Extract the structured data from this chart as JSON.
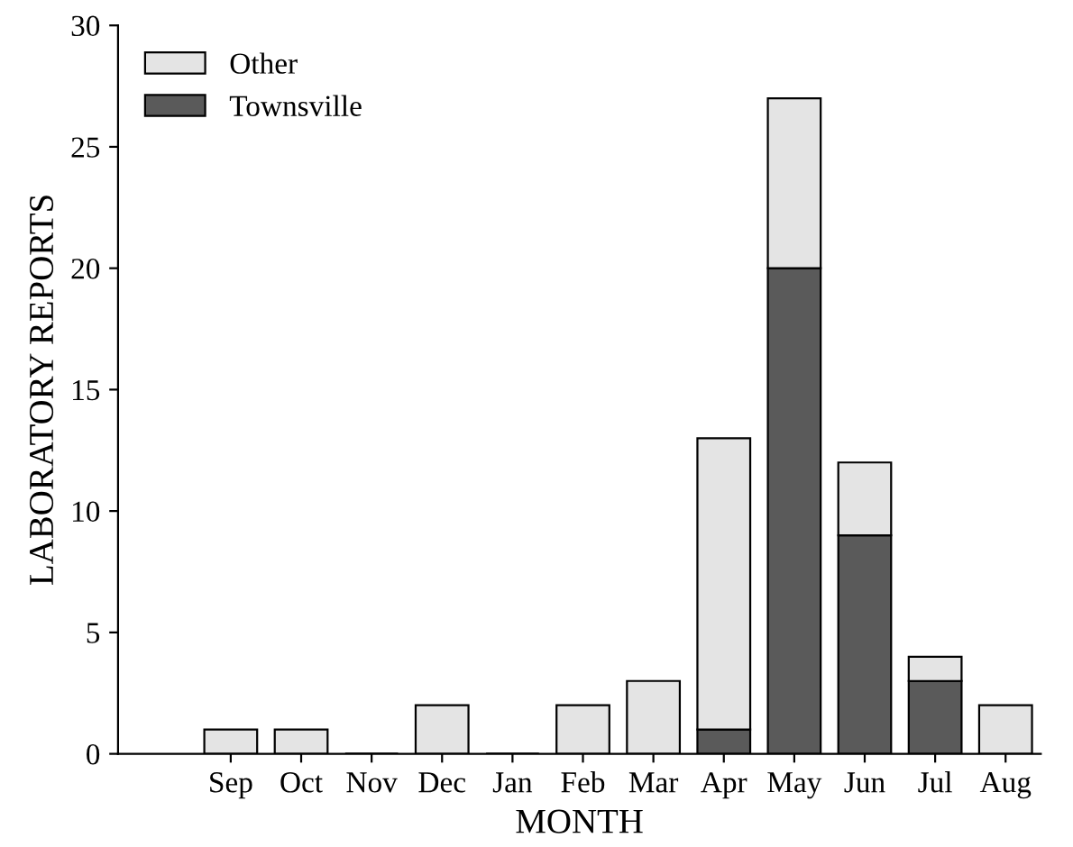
{
  "chart_data": {
    "type": "bar",
    "stacked": true,
    "xlabel": "MONTH",
    "ylabel": "LABORATORY REPORTS",
    "categories": [
      "Sep",
      "Oct",
      "Nov",
      "Dec",
      "Jan",
      "Feb",
      "Mar",
      "Apr",
      "May",
      "Jun",
      "Jul",
      "Aug"
    ],
    "series": [
      {
        "name": "Townsville",
        "color": "#5a5a5a",
        "values": [
          0,
          0,
          0,
          0,
          0,
          0,
          0,
          1,
          20,
          9,
          3,
          0
        ]
      },
      {
        "name": "Other",
        "color": "#e4e4e4",
        "values": [
          1,
          1,
          0,
          2,
          0,
          2,
          3,
          12,
          7,
          3,
          1,
          2
        ]
      }
    ],
    "ylim": [
      0,
      30
    ],
    "yticks": [
      0,
      5,
      10,
      15,
      20,
      25,
      30
    ],
    "grid": false,
    "legend": "top left"
  }
}
